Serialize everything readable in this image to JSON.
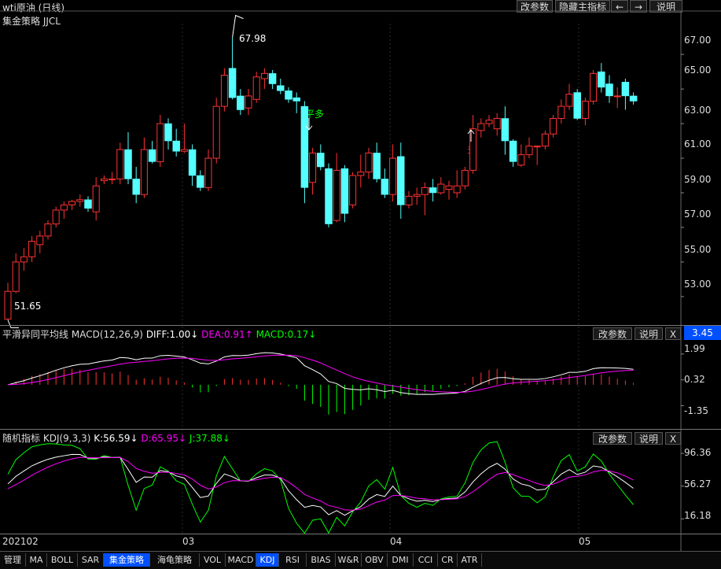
{
  "title": "wti原油 (日线)",
  "top_buttons": [
    "改参数",
    "隐藏主指标",
    "←",
    "→",
    "说明"
  ],
  "main_panel": {
    "indicator": "集金策略  JJCL",
    "y_labels": [
      "67.00",
      "65.00",
      "63.00",
      "61.00",
      "59.00",
      "57.00",
      "55.00",
      "53.00"
    ],
    "high_label": "67.98",
    "low_label": "51.65",
    "signal_flat": "平多",
    "signal_long": "多"
  },
  "macd_panel": {
    "name": "平滑异同平均线",
    "params": "MACD(12,26,9)",
    "diff": "DIFF:1.00↓",
    "dea": "DEA:0.91↑",
    "macd": "MACD:0.17↓",
    "current": "3.45",
    "y_labels": [
      "1.99",
      "0.32",
      "-1.35"
    ],
    "buttons": [
      "改参数",
      "说明",
      "X"
    ]
  },
  "kdj_panel": {
    "name": "随机指标",
    "params": "KDJ(9,3,3)",
    "k": "K:56.59↓",
    "d": "D:65.95↓",
    "j": "J:37.88↓",
    "y_labels": [
      "96.36",
      "56.27",
      "16.18"
    ],
    "buttons": [
      "改参数",
      "说明",
      "X"
    ]
  },
  "date_axis": [
    "202102",
    "03",
    "04",
    "05"
  ],
  "tabs": [
    "管理",
    "MA",
    "BOLL",
    "SAR",
    "集金策略",
    "海龟策略",
    "VOL",
    "MACD",
    "KDJ",
    "RSI",
    "BIAS",
    "W&R",
    "OBV",
    "DMI",
    "CCI",
    "CR",
    "ATR"
  ],
  "active_tabs": [
    "集金策略",
    "KDJ"
  ],
  "colors": {
    "up": "#ff3232",
    "down": "#54ffff",
    "diff": "#ffffff",
    "dea": "#ff00ff",
    "macd_green": "#00ff00",
    "k": "#ffffff",
    "d": "#ff00ff",
    "j": "#00ff00",
    "active_tab": "#0050ff"
  },
  "chart_data": {
    "type": "candlestick",
    "ylim": [
      51.4,
      68.6
    ],
    "candles": [
      {
        "o": 51.7,
        "h": 53.8,
        "l": 51.65,
        "c": 53.3
      },
      {
        "o": 53.3,
        "h": 55.5,
        "l": 53.2,
        "c": 55.0
      },
      {
        "o": 55.0,
        "h": 55.8,
        "l": 54.5,
        "c": 55.3
      },
      {
        "o": 55.3,
        "h": 56.5,
        "l": 55.0,
        "c": 56.2
      },
      {
        "o": 56.0,
        "h": 56.8,
        "l": 55.5,
        "c": 56.5
      },
      {
        "o": 56.5,
        "h": 57.4,
        "l": 56.3,
        "c": 57.2
      },
      {
        "o": 57.2,
        "h": 58.2,
        "l": 57.0,
        "c": 58.0
      },
      {
        "o": 58.0,
        "h": 58.5,
        "l": 57.5,
        "c": 58.3
      },
      {
        "o": 58.3,
        "h": 58.6,
        "l": 58.0,
        "c": 58.5
      },
      {
        "o": 58.5,
        "h": 58.9,
        "l": 58.2,
        "c": 58.6
      },
      {
        "o": 58.6,
        "h": 58.8,
        "l": 57.9,
        "c": 58.1
      },
      {
        "o": 57.9,
        "h": 59.9,
        "l": 57.4,
        "c": 59.4
      },
      {
        "o": 59.7,
        "h": 60.0,
        "l": 59.5,
        "c": 59.8
      },
      {
        "o": 59.8,
        "h": 60.2,
        "l": 59.5,
        "c": 59.8
      },
      {
        "o": 59.8,
        "h": 61.9,
        "l": 59.5,
        "c": 61.5
      },
      {
        "o": 61.5,
        "h": 62.5,
        "l": 59.5,
        "c": 59.8
      },
      {
        "o": 59.8,
        "h": 60.5,
        "l": 58.4,
        "c": 58.9
      },
      {
        "o": 58.9,
        "h": 62.2,
        "l": 58.7,
        "c": 61.5
      },
      {
        "o": 61.5,
        "h": 62.0,
        "l": 60.7,
        "c": 60.8
      },
      {
        "o": 60.8,
        "h": 63.5,
        "l": 60.5,
        "c": 63.0
      },
      {
        "o": 63.0,
        "h": 63.3,
        "l": 61.5,
        "c": 62.0
      },
      {
        "o": 62.0,
        "h": 62.7,
        "l": 61.1,
        "c": 61.4
      },
      {
        "o": 61.4,
        "h": 63.0,
        "l": 61.3,
        "c": 61.5
      },
      {
        "o": 61.5,
        "h": 61.8,
        "l": 59.4,
        "c": 60.0
      },
      {
        "o": 60.0,
        "h": 60.3,
        "l": 59.1,
        "c": 59.3
      },
      {
        "o": 59.3,
        "h": 61.5,
        "l": 59.1,
        "c": 61.0
      },
      {
        "o": 61.0,
        "h": 64.5,
        "l": 60.7,
        "c": 64.0
      },
      {
        "o": 64.0,
        "h": 66.2,
        "l": 63.7,
        "c": 65.8
      },
      {
        "o": 66.2,
        "h": 67.98,
        "l": 64.4,
        "c": 64.5
      },
      {
        "o": 64.6,
        "h": 65.0,
        "l": 63.5,
        "c": 63.8
      },
      {
        "o": 63.9,
        "h": 65.0,
        "l": 63.5,
        "c": 64.6
      },
      {
        "o": 64.4,
        "h": 66.0,
        "l": 64.2,
        "c": 65.7
      },
      {
        "o": 65.6,
        "h": 66.2,
        "l": 65.0,
        "c": 65.9
      },
      {
        "o": 65.9,
        "h": 66.1,
        "l": 65.0,
        "c": 65.3
      },
      {
        "o": 65.2,
        "h": 65.6,
        "l": 64.7,
        "c": 64.9
      },
      {
        "o": 64.9,
        "h": 65.1,
        "l": 64.2,
        "c": 64.4
      },
      {
        "o": 64.5,
        "h": 64.8,
        "l": 63.6,
        "c": 64.3
      },
      {
        "o": 64.0,
        "h": 64.3,
        "l": 58.4,
        "c": 59.3
      },
      {
        "o": 59.6,
        "h": 61.6,
        "l": 58.9,
        "c": 61.3
      },
      {
        "o": 61.3,
        "h": 61.8,
        "l": 60.3,
        "c": 60.5
      },
      {
        "o": 60.4,
        "h": 60.7,
        "l": 57.0,
        "c": 57.2
      },
      {
        "o": 57.4,
        "h": 61.3,
        "l": 57.3,
        "c": 60.3
      },
      {
        "o": 60.4,
        "h": 60.6,
        "l": 57.3,
        "c": 57.8
      },
      {
        "o": 58.3,
        "h": 60.2,
        "l": 58.1,
        "c": 60.0
      },
      {
        "o": 60.0,
        "h": 61.2,
        "l": 59.3,
        "c": 60.2
      },
      {
        "o": 60.2,
        "h": 61.6,
        "l": 59.8,
        "c": 61.3
      },
      {
        "o": 61.3,
        "h": 61.9,
        "l": 59.6,
        "c": 59.8
      },
      {
        "o": 59.8,
        "h": 60.4,
        "l": 58.7,
        "c": 58.9
      },
      {
        "o": 58.9,
        "h": 61.8,
        "l": 58.5,
        "c": 61.0
      },
      {
        "o": 61.1,
        "h": 61.9,
        "l": 57.5,
        "c": 58.3
      },
      {
        "o": 58.3,
        "h": 59.1,
        "l": 58.1,
        "c": 58.8
      },
      {
        "o": 58.8,
        "h": 59.3,
        "l": 58.3,
        "c": 58.9
      },
      {
        "o": 58.9,
        "h": 59.6,
        "l": 57.7,
        "c": 59.3
      },
      {
        "o": 59.3,
        "h": 59.8,
        "l": 58.5,
        "c": 59.0
      },
      {
        "o": 59.0,
        "h": 59.9,
        "l": 58.9,
        "c": 59.5
      },
      {
        "o": 59.2,
        "h": 59.7,
        "l": 58.6,
        "c": 59.4
      },
      {
        "o": 59.0,
        "h": 60.3,
        "l": 58.7,
        "c": 59.4
      },
      {
        "o": 59.4,
        "h": 60.5,
        "l": 59.2,
        "c": 60.3
      },
      {
        "o": 60.3,
        "h": 63.5,
        "l": 60.1,
        "c": 62.7
      },
      {
        "o": 62.6,
        "h": 63.3,
        "l": 62.2,
        "c": 63.0
      },
      {
        "o": 63.0,
        "h": 63.5,
        "l": 62.8,
        "c": 63.2
      },
      {
        "o": 62.7,
        "h": 63.6,
        "l": 62.3,
        "c": 63.3
      },
      {
        "o": 63.3,
        "h": 64.0,
        "l": 61.2,
        "c": 62.0
      },
      {
        "o": 62.0,
        "h": 62.1,
        "l": 60.5,
        "c": 60.8
      },
      {
        "o": 60.6,
        "h": 61.8,
        "l": 60.5,
        "c": 61.2
      },
      {
        "o": 61.2,
        "h": 62.2,
        "l": 61.0,
        "c": 61.7
      },
      {
        "o": 61.7,
        "h": 61.7,
        "l": 60.6,
        "c": 61.7
      },
      {
        "o": 61.7,
        "h": 62.6,
        "l": 61.5,
        "c": 62.4
      },
      {
        "o": 62.4,
        "h": 63.5,
        "l": 62.2,
        "c": 63.3
      },
      {
        "o": 63.3,
        "h": 64.4,
        "l": 63.0,
        "c": 64.0
      },
      {
        "o": 64.0,
        "h": 65.3,
        "l": 63.8,
        "c": 64.7
      },
      {
        "o": 64.8,
        "h": 65.0,
        "l": 63.2,
        "c": 63.3
      },
      {
        "o": 63.3,
        "h": 64.5,
        "l": 62.9,
        "c": 64.3
      },
      {
        "o": 64.3,
        "h": 66.1,
        "l": 64.1,
        "c": 65.9
      },
      {
        "o": 66.0,
        "h": 66.5,
        "l": 64.8,
        "c": 65.1
      },
      {
        "o": 65.3,
        "h": 65.8,
        "l": 64.2,
        "c": 64.6
      },
      {
        "o": 64.6,
        "h": 65.1,
        "l": 63.9,
        "c": 64.6
      },
      {
        "o": 65.4,
        "h": 65.6,
        "l": 63.8,
        "c": 64.6
      },
      {
        "o": 64.6,
        "h": 64.8,
        "l": 64.1,
        "c": 64.3
      }
    ]
  }
}
